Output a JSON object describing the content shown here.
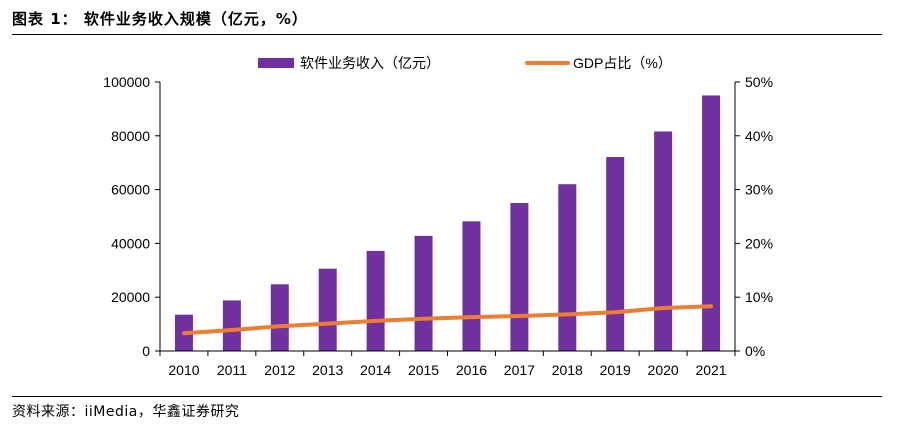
{
  "figure": {
    "title": "图表 1： 软件业务收入规模（亿元，%）",
    "source": "资料来源：iiMedia，华鑫证券研究"
  },
  "chart_data": {
    "type": "bar",
    "categories": [
      "2010",
      "2011",
      "2012",
      "2013",
      "2014",
      "2015",
      "2016",
      "2017",
      "2018",
      "2019",
      "2020",
      "2021"
    ],
    "series": [
      {
        "name": "软件业务收入（亿元）",
        "type": "bar",
        "axis": "left",
        "color": "#7030a0",
        "values": [
          13500,
          18800,
          24800,
          30600,
          37200,
          42800,
          48200,
          55000,
          62000,
          72100,
          81600,
          95000
        ]
      },
      {
        "name": "GDP占比（%）",
        "type": "line",
        "axis": "right",
        "color": "#ed7d31",
        "values": [
          3.3,
          3.9,
          4.6,
          5.1,
          5.6,
          6.0,
          6.3,
          6.5,
          6.8,
          7.2,
          8.0,
          8.3
        ]
      }
    ],
    "y_left": {
      "ylim": [
        0,
        100000
      ],
      "ticks": [
        "0",
        "20000",
        "40000",
        "60000",
        "80000",
        "100000"
      ]
    },
    "y_right": {
      "ylim": [
        0,
        50
      ],
      "ticks": [
        "0%",
        "10%",
        "20%",
        "30%",
        "40%",
        "50%"
      ]
    },
    "legend": "top-center",
    "grid": false
  }
}
